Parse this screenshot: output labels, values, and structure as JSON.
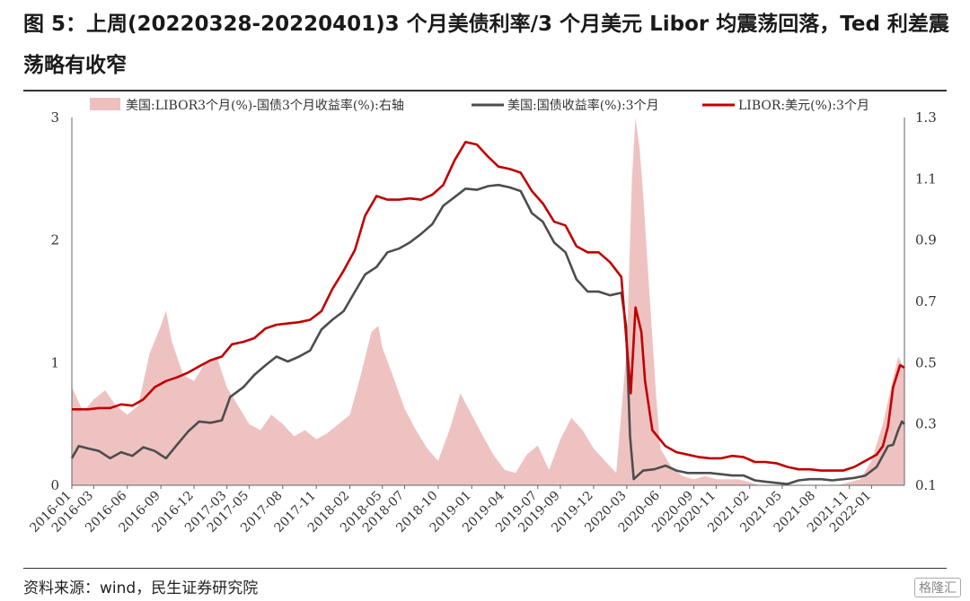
{
  "title": "图 5：上周(20220328-20220401)3 个月美债利率/3 个月美元 Libor 均震荡回落，Ted 利差震荡略有收窄",
  "source": "资料来源：wind，民生证券研究院",
  "brand": "格隆汇",
  "colors": {
    "spread": "#eebfbf",
    "treasury": "#4d4d4d",
    "libor": "#c00000"
  },
  "chart_data": {
    "type": "line",
    "legend_placement": "top",
    "grid": false,
    "x_ticks": [
      "2016-01",
      "2016-03",
      "2016-06",
      "2016-09",
      "2016-12",
      "2017-03",
      "2017-05",
      "2017-08",
      "2017-11",
      "2018-02",
      "2018-05",
      "2018-07",
      "2018-10",
      "2019-01",
      "2019-04",
      "2019-07",
      "2019-09",
      "2019-12",
      "2020-03",
      "2020-06",
      "2020-09",
      "2020-11",
      "2021-02",
      "2021-05",
      "2021-08",
      "2021-11",
      "2022-01"
    ],
    "x_range": [
      "2016-01-01",
      "2022-04-01"
    ],
    "y_left": {
      "range": [
        0,
        3
      ],
      "ticks": [
        "0",
        "1",
        "2",
        "3"
      ]
    },
    "y_right": {
      "range": [
        0.1,
        1.3
      ],
      "ticks": [
        "0.1",
        "0.3",
        "0.5",
        "0.7",
        "0.9",
        "1.1",
        "1.3"
      ]
    },
    "series": [
      {
        "name": "美国:LIBOR3个月(%)-国债3个月收益率(%):右轴",
        "kind": "area",
        "axis": "right",
        "points": [
          [
            "2016-01-01",
            0.42
          ],
          [
            "2016-02-01",
            0.34
          ],
          [
            "2016-03-01",
            0.38
          ],
          [
            "2016-04-01",
            0.41
          ],
          [
            "2016-05-01",
            0.36
          ],
          [
            "2016-06-01",
            0.33
          ],
          [
            "2016-07-01",
            0.36
          ],
          [
            "2016-08-01",
            0.53
          ],
          [
            "2016-09-01",
            0.62
          ],
          [
            "2016-09-15",
            0.67
          ],
          [
            "2016-10-01",
            0.57
          ],
          [
            "2016-11-01",
            0.46
          ],
          [
            "2016-12-01",
            0.44
          ],
          [
            "2017-01-01",
            0.5
          ],
          [
            "2017-02-01",
            0.52
          ],
          [
            "2017-03-01",
            0.42
          ],
          [
            "2017-04-01",
            0.36
          ],
          [
            "2017-05-01",
            0.3
          ],
          [
            "2017-06-01",
            0.28
          ],
          [
            "2017-07-01",
            0.33
          ],
          [
            "2017-08-01",
            0.3
          ],
          [
            "2017-09-01",
            0.26
          ],
          [
            "2017-10-01",
            0.28
          ],
          [
            "2017-11-01",
            0.25
          ],
          [
            "2017-12-01",
            0.27
          ],
          [
            "2018-01-01",
            0.3
          ],
          [
            "2018-02-01",
            0.33
          ],
          [
            "2018-03-01",
            0.45
          ],
          [
            "2018-04-01",
            0.6
          ],
          [
            "2018-04-20",
            0.62
          ],
          [
            "2018-05-01",
            0.55
          ],
          [
            "2018-06-01",
            0.45
          ],
          [
            "2018-07-01",
            0.35
          ],
          [
            "2018-08-01",
            0.28
          ],
          [
            "2018-09-01",
            0.22
          ],
          [
            "2018-10-01",
            0.18
          ],
          [
            "2018-11-01",
            0.28
          ],
          [
            "2018-12-01",
            0.4
          ],
          [
            "2019-01-01",
            0.33
          ],
          [
            "2019-02-01",
            0.26
          ],
          [
            "2019-03-01",
            0.2
          ],
          [
            "2019-04-01",
            0.15
          ],
          [
            "2019-05-01",
            0.14
          ],
          [
            "2019-06-01",
            0.2
          ],
          [
            "2019-07-01",
            0.23
          ],
          [
            "2019-08-01",
            0.15
          ],
          [
            "2019-09-01",
            0.25
          ],
          [
            "2019-10-01",
            0.32
          ],
          [
            "2019-11-01",
            0.28
          ],
          [
            "2019-12-01",
            0.22
          ],
          [
            "2020-01-01",
            0.18
          ],
          [
            "2020-02-01",
            0.14
          ],
          [
            "2020-03-01",
            0.55
          ],
          [
            "2020-03-15",
            1.1
          ],
          [
            "2020-03-25",
            1.35
          ],
          [
            "2020-04-05",
            1.2
          ],
          [
            "2020-04-15",
            1.05
          ],
          [
            "2020-05-01",
            0.75
          ],
          [
            "2020-05-20",
            0.4
          ],
          [
            "2020-06-01",
            0.22
          ],
          [
            "2020-07-01",
            0.16
          ],
          [
            "2020-08-01",
            0.13
          ],
          [
            "2020-09-01",
            0.12
          ],
          [
            "2020-10-01",
            0.13
          ],
          [
            "2020-11-01",
            0.12
          ],
          [
            "2020-12-01",
            0.12
          ],
          [
            "2021-01-01",
            0.12
          ],
          [
            "2021-02-01",
            0.11
          ],
          [
            "2021-03-01",
            0.1
          ],
          [
            "2021-04-01",
            0.1
          ],
          [
            "2021-06-01",
            0.1
          ],
          [
            "2021-08-01",
            0.1
          ],
          [
            "2021-10-01",
            0.1
          ],
          [
            "2021-12-01",
            0.12
          ],
          [
            "2022-01-01",
            0.18
          ],
          [
            "2022-02-01",
            0.3
          ],
          [
            "2022-03-01",
            0.45
          ],
          [
            "2022-03-15",
            0.52
          ],
          [
            "2022-04-01",
            0.48
          ]
        ]
      },
      {
        "name": "美国:国债收益率(%):3个月",
        "kind": "line",
        "axis": "left",
        "points": [
          [
            "2016-01-01",
            0.22
          ],
          [
            "2016-01-20",
            0.32
          ],
          [
            "2016-02-15",
            0.3
          ],
          [
            "2016-03-15",
            0.28
          ],
          [
            "2016-04-15",
            0.22
          ],
          [
            "2016-05-15",
            0.27
          ],
          [
            "2016-06-15",
            0.24
          ],
          [
            "2016-07-15",
            0.31
          ],
          [
            "2016-08-15",
            0.28
          ],
          [
            "2016-09-15",
            0.22
          ],
          [
            "2016-10-15",
            0.33
          ],
          [
            "2016-11-15",
            0.44
          ],
          [
            "2016-12-15",
            0.52
          ],
          [
            "2017-01-15",
            0.51
          ],
          [
            "2017-02-15",
            0.53
          ],
          [
            "2017-03-10",
            0.72
          ],
          [
            "2017-04-15",
            0.8
          ],
          [
            "2017-05-15",
            0.9
          ],
          [
            "2017-06-15",
            0.98
          ],
          [
            "2017-07-15",
            1.05
          ],
          [
            "2017-08-15",
            1.01
          ],
          [
            "2017-09-15",
            1.05
          ],
          [
            "2017-10-15",
            1.1
          ],
          [
            "2017-11-15",
            1.27
          ],
          [
            "2017-12-15",
            1.35
          ],
          [
            "2018-01-15",
            1.42
          ],
          [
            "2018-02-15",
            1.58
          ],
          [
            "2018-03-15",
            1.72
          ],
          [
            "2018-04-15",
            1.78
          ],
          [
            "2018-05-15",
            1.9
          ],
          [
            "2018-06-15",
            1.93
          ],
          [
            "2018-07-15",
            1.98
          ],
          [
            "2018-08-15",
            2.05
          ],
          [
            "2018-09-15",
            2.13
          ],
          [
            "2018-10-15",
            2.28
          ],
          [
            "2018-11-15",
            2.35
          ],
          [
            "2018-12-15",
            2.42
          ],
          [
            "2019-01-15",
            2.41
          ],
          [
            "2019-02-15",
            2.44
          ],
          [
            "2019-03-15",
            2.45
          ],
          [
            "2019-04-15",
            2.43
          ],
          [
            "2019-05-15",
            2.4
          ],
          [
            "2019-06-15",
            2.22
          ],
          [
            "2019-07-15",
            2.15
          ],
          [
            "2019-08-15",
            1.98
          ],
          [
            "2019-09-15",
            1.9
          ],
          [
            "2019-10-15",
            1.68
          ],
          [
            "2019-11-15",
            1.58
          ],
          [
            "2019-12-15",
            1.58
          ],
          [
            "2020-01-15",
            1.55
          ],
          [
            "2020-02-15",
            1.57
          ],
          [
            "2020-02-28",
            1.3
          ],
          [
            "2020-03-10",
            0.4
          ],
          [
            "2020-03-20",
            0.05
          ],
          [
            "2020-04-15",
            0.12
          ],
          [
            "2020-05-15",
            0.13
          ],
          [
            "2020-06-15",
            0.16
          ],
          [
            "2020-07-15",
            0.12
          ],
          [
            "2020-08-15",
            0.1
          ],
          [
            "2020-09-15",
            0.1
          ],
          [
            "2020-10-15",
            0.1
          ],
          [
            "2020-11-15",
            0.09
          ],
          [
            "2020-12-15",
            0.08
          ],
          [
            "2021-01-15",
            0.08
          ],
          [
            "2021-02-15",
            0.04
          ],
          [
            "2021-03-15",
            0.03
          ],
          [
            "2021-04-15",
            0.02
          ],
          [
            "2021-05-15",
            0.01
          ],
          [
            "2021-06-15",
            0.04
          ],
          [
            "2021-07-15",
            0.05
          ],
          [
            "2021-08-15",
            0.05
          ],
          [
            "2021-09-15",
            0.04
          ],
          [
            "2021-10-15",
            0.05
          ],
          [
            "2021-11-15",
            0.06
          ],
          [
            "2021-12-15",
            0.08
          ],
          [
            "2022-01-15",
            0.15
          ],
          [
            "2022-02-15",
            0.32
          ],
          [
            "2022-03-01",
            0.33
          ],
          [
            "2022-03-15",
            0.45
          ],
          [
            "2022-03-25",
            0.52
          ],
          [
            "2022-04-01",
            0.5
          ]
        ]
      },
      {
        "name": "LIBOR:美元(%):3个月",
        "kind": "line",
        "axis": "left",
        "points": [
          [
            "2016-01-01",
            0.62
          ],
          [
            "2016-02-15",
            0.62
          ],
          [
            "2016-03-15",
            0.63
          ],
          [
            "2016-04-15",
            0.63
          ],
          [
            "2016-05-15",
            0.66
          ],
          [
            "2016-06-15",
            0.65
          ],
          [
            "2016-07-15",
            0.7
          ],
          [
            "2016-08-15",
            0.8
          ],
          [
            "2016-09-15",
            0.85
          ],
          [
            "2016-10-15",
            0.88
          ],
          [
            "2016-11-15",
            0.92
          ],
          [
            "2016-12-15",
            0.97
          ],
          [
            "2017-01-15",
            1.02
          ],
          [
            "2017-02-15",
            1.05
          ],
          [
            "2017-03-15",
            1.15
          ],
          [
            "2017-04-15",
            1.17
          ],
          [
            "2017-05-15",
            1.2
          ],
          [
            "2017-06-15",
            1.28
          ],
          [
            "2017-07-15",
            1.31
          ],
          [
            "2017-08-15",
            1.32
          ],
          [
            "2017-09-15",
            1.33
          ],
          [
            "2017-10-15",
            1.35
          ],
          [
            "2017-11-15",
            1.42
          ],
          [
            "2017-12-15",
            1.6
          ],
          [
            "2018-01-15",
            1.75
          ],
          [
            "2018-02-15",
            1.92
          ],
          [
            "2018-03-15",
            2.2
          ],
          [
            "2018-04-15",
            2.36
          ],
          [
            "2018-05-15",
            2.33
          ],
          [
            "2018-06-15",
            2.33
          ],
          [
            "2018-07-15",
            2.34
          ],
          [
            "2018-08-15",
            2.33
          ],
          [
            "2018-09-15",
            2.37
          ],
          [
            "2018-10-15",
            2.45
          ],
          [
            "2018-11-15",
            2.65
          ],
          [
            "2018-12-15",
            2.8
          ],
          [
            "2019-01-15",
            2.78
          ],
          [
            "2019-02-15",
            2.68
          ],
          [
            "2019-03-15",
            2.6
          ],
          [
            "2019-04-15",
            2.58
          ],
          [
            "2019-05-15",
            2.55
          ],
          [
            "2019-06-15",
            2.4
          ],
          [
            "2019-07-15",
            2.3
          ],
          [
            "2019-08-15",
            2.15
          ],
          [
            "2019-09-15",
            2.12
          ],
          [
            "2019-10-15",
            1.95
          ],
          [
            "2019-11-15",
            1.9
          ],
          [
            "2019-12-15",
            1.9
          ],
          [
            "2020-01-15",
            1.82
          ],
          [
            "2020-02-15",
            1.7
          ],
          [
            "2020-03-05",
            1.0
          ],
          [
            "2020-03-12",
            0.75
          ],
          [
            "2020-03-25",
            1.45
          ],
          [
            "2020-04-10",
            1.25
          ],
          [
            "2020-04-20",
            0.85
          ],
          [
            "2020-05-10",
            0.45
          ],
          [
            "2020-06-15",
            0.32
          ],
          [
            "2020-07-15",
            0.27
          ],
          [
            "2020-08-15",
            0.25
          ],
          [
            "2020-09-15",
            0.23
          ],
          [
            "2020-10-15",
            0.22
          ],
          [
            "2020-11-15",
            0.22
          ],
          [
            "2020-12-15",
            0.24
          ],
          [
            "2021-01-15",
            0.23
          ],
          [
            "2021-02-15",
            0.19
          ],
          [
            "2021-03-15",
            0.19
          ],
          [
            "2021-04-15",
            0.18
          ],
          [
            "2021-05-15",
            0.15
          ],
          [
            "2021-06-15",
            0.13
          ],
          [
            "2021-07-15",
            0.13
          ],
          [
            "2021-08-15",
            0.12
          ],
          [
            "2021-09-15",
            0.12
          ],
          [
            "2021-10-15",
            0.12
          ],
          [
            "2021-11-15",
            0.15
          ],
          [
            "2021-12-15",
            0.2
          ],
          [
            "2022-01-15",
            0.25
          ],
          [
            "2022-02-01",
            0.32
          ],
          [
            "2022-02-15",
            0.48
          ],
          [
            "2022-03-01",
            0.8
          ],
          [
            "2022-03-20",
            0.98
          ],
          [
            "2022-04-01",
            0.96
          ]
        ]
      }
    ]
  }
}
